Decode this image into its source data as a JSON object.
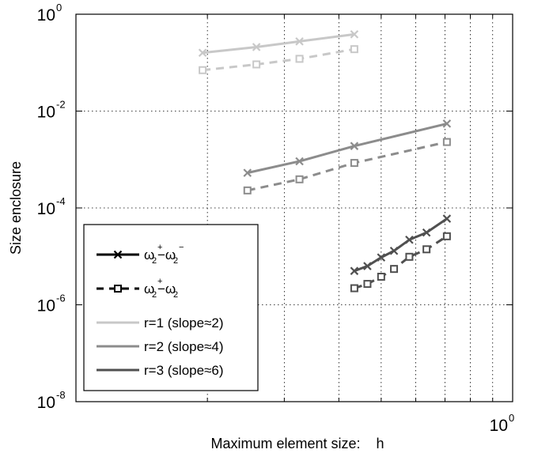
{
  "chart_data": {
    "type": "line",
    "title": "",
    "xlabel": "Maximum element size:    h",
    "ylabel": "Size enclosure",
    "x_scale": "log",
    "y_scale": "log",
    "xlim": [
      0.1,
      1
    ],
    "ylim": [
      1e-08,
      1
    ],
    "grid": true,
    "y_ticks": [
      {
        "value": 1,
        "base": "10",
        "exp": "0"
      },
      {
        "value": 0.01,
        "base": "10",
        "exp": "-2"
      },
      {
        "value": 0.0001,
        "base": "10",
        "exp": "-4"
      },
      {
        "value": 1e-06,
        "base": "10",
        "exp": "-6"
      },
      {
        "value": 1e-08,
        "base": "10",
        "exp": "-8"
      }
    ],
    "x_ticks": [
      {
        "value": 1,
        "base": "10",
        "exp": "0"
      }
    ],
    "x_grid": [
      0.2,
      0.3,
      0.4,
      0.5,
      0.6,
      0.7,
      0.8,
      0.9
    ],
    "series": [
      {
        "group": "r=1",
        "kind": "upper",
        "color": "#c8c8c8",
        "x": [
          0.195,
          0.259,
          0.325,
          0.434
        ],
        "y": [
          0.16,
          0.21,
          0.275,
          0.385
        ]
      },
      {
        "group": "r=1",
        "kind": "lower",
        "color": "#c8c8c8",
        "x": [
          0.195,
          0.259,
          0.325,
          0.434
        ],
        "y": [
          0.07,
          0.092,
          0.12,
          0.19
        ]
      },
      {
        "group": "r=2",
        "kind": "upper",
        "color": "#8c8c8c",
        "x": [
          0.247,
          0.325,
          0.434,
          0.707
        ],
        "y": [
          0.00053,
          0.00092,
          0.0019,
          0.0055
        ]
      },
      {
        "group": "r=2",
        "kind": "lower",
        "color": "#8c8c8c",
        "x": [
          0.247,
          0.325,
          0.434,
          0.707
        ],
        "y": [
          0.00023,
          0.00039,
          0.00085,
          0.0023
        ]
      },
      {
        "group": "r=3",
        "kind": "upper",
        "color": "#505050",
        "x": [
          0.434,
          0.465,
          0.5,
          0.535,
          0.58,
          0.635,
          0.707
        ],
        "y": [
          5e-06,
          6.3e-06,
          9.5e-06,
          1.3e-05,
          2.2e-05,
          3.1e-05,
          6e-05
        ]
      },
      {
        "group": "r=3",
        "kind": "lower",
        "color": "#505050",
        "x": [
          0.434,
          0.465,
          0.5,
          0.535,
          0.58,
          0.635,
          0.707
        ],
        "y": [
          2.2e-06,
          2.7e-06,
          3.8e-06,
          5.5e-06,
          9.8e-06,
          1.4e-05,
          2.6e-05
        ]
      }
    ],
    "legend": {
      "position": "bottom-left",
      "entries": [
        {
          "style": "solid-x",
          "color": "#000000",
          "label": "ω2+−ω2−",
          "parts": [
            {
              "t": "ω"
            },
            {
              "t": "2",
              "sub": true
            },
            {
              "t": "+",
              "sup": true
            },
            {
              "t": "−ω"
            },
            {
              "t": "2",
              "sub": true
            },
            {
              "t": "−",
              "sup": true
            }
          ]
        },
        {
          "style": "dashed-square",
          "color": "#000000",
          "label": "ω2+−ω2",
          "parts": [
            {
              "t": "ω"
            },
            {
              "t": "2",
              "sub": true
            },
            {
              "t": "+",
              "sup": true
            },
            {
              "t": "−ω"
            },
            {
              "t": "2",
              "sub": true
            }
          ]
        },
        {
          "style": "line",
          "color": "#c8c8c8",
          "label": "r=1 (slope≈2)"
        },
        {
          "style": "line",
          "color": "#8c8c8c",
          "label": "r=2 (slope≈4)"
        },
        {
          "style": "line",
          "color": "#505050",
          "label": "r=3 (slope≈6)"
        }
      ]
    }
  }
}
